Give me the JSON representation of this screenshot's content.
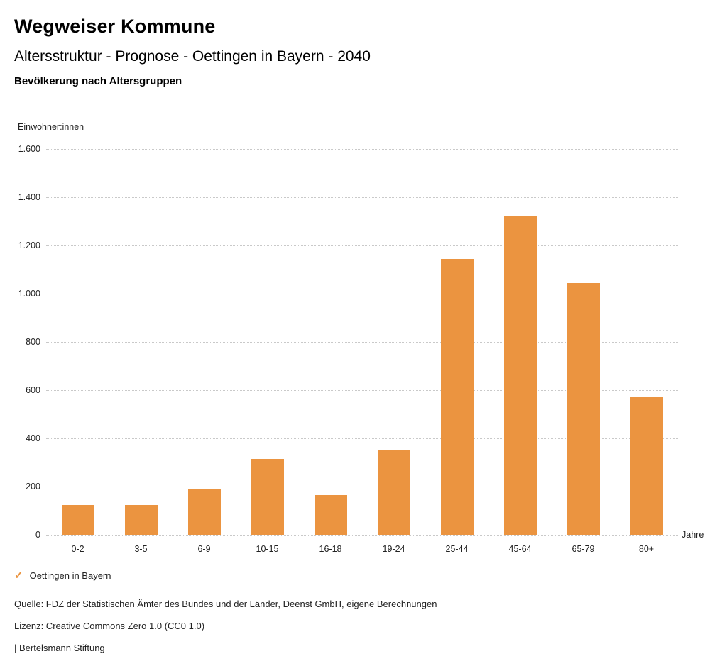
{
  "header": {
    "title": "Wegweiser Kommune",
    "subtitle": "Altersstruktur - Prognose - Oettingen in Bayern - 2040",
    "chart_heading": "Bevölkerung nach Altersgruppen"
  },
  "chart_data": {
    "type": "bar",
    "title": "Bevölkerung nach Altersgruppen",
    "categories": [
      "0-2",
      "3-5",
      "6-9",
      "10-15",
      "16-18",
      "19-24",
      "25-44",
      "45-64",
      "65-79",
      "80+"
    ],
    "values": [
      125,
      125,
      190,
      315,
      165,
      350,
      1145,
      1325,
      1045,
      575
    ],
    "series_name": "Oettingen in Bayern",
    "xlabel": "Jahre",
    "ylabel": "Einwohner:innen",
    "ylim": [
      0,
      1600
    ],
    "yticks": [
      {
        "value": 0,
        "label": "0"
      },
      {
        "value": 200,
        "label": "200"
      },
      {
        "value": 400,
        "label": "400"
      },
      {
        "value": 600,
        "label": "600"
      },
      {
        "value": 800,
        "label": "800"
      },
      {
        "value": 1000,
        "label": "1.000"
      },
      {
        "value": 1200,
        "label": "1.200"
      },
      {
        "value": 1400,
        "label": "1.400"
      },
      {
        "value": 1600,
        "label": "1.600"
      }
    ],
    "grid": "dotted horizontal",
    "legend_position": "bottom-left",
    "bar_color": "#EB9440"
  },
  "legend": {
    "check_icon": "✓",
    "label": "Oettingen in Bayern"
  },
  "footer": {
    "source": "Quelle: FDZ der Statistischen Ämter des Bundes und der Länder, Deenst GmbH, eigene Berechnungen",
    "license": "Lizenz: Creative Commons Zero 1.0 (CC0 1.0)",
    "attribution": "| Bertelsmann Stiftung"
  }
}
